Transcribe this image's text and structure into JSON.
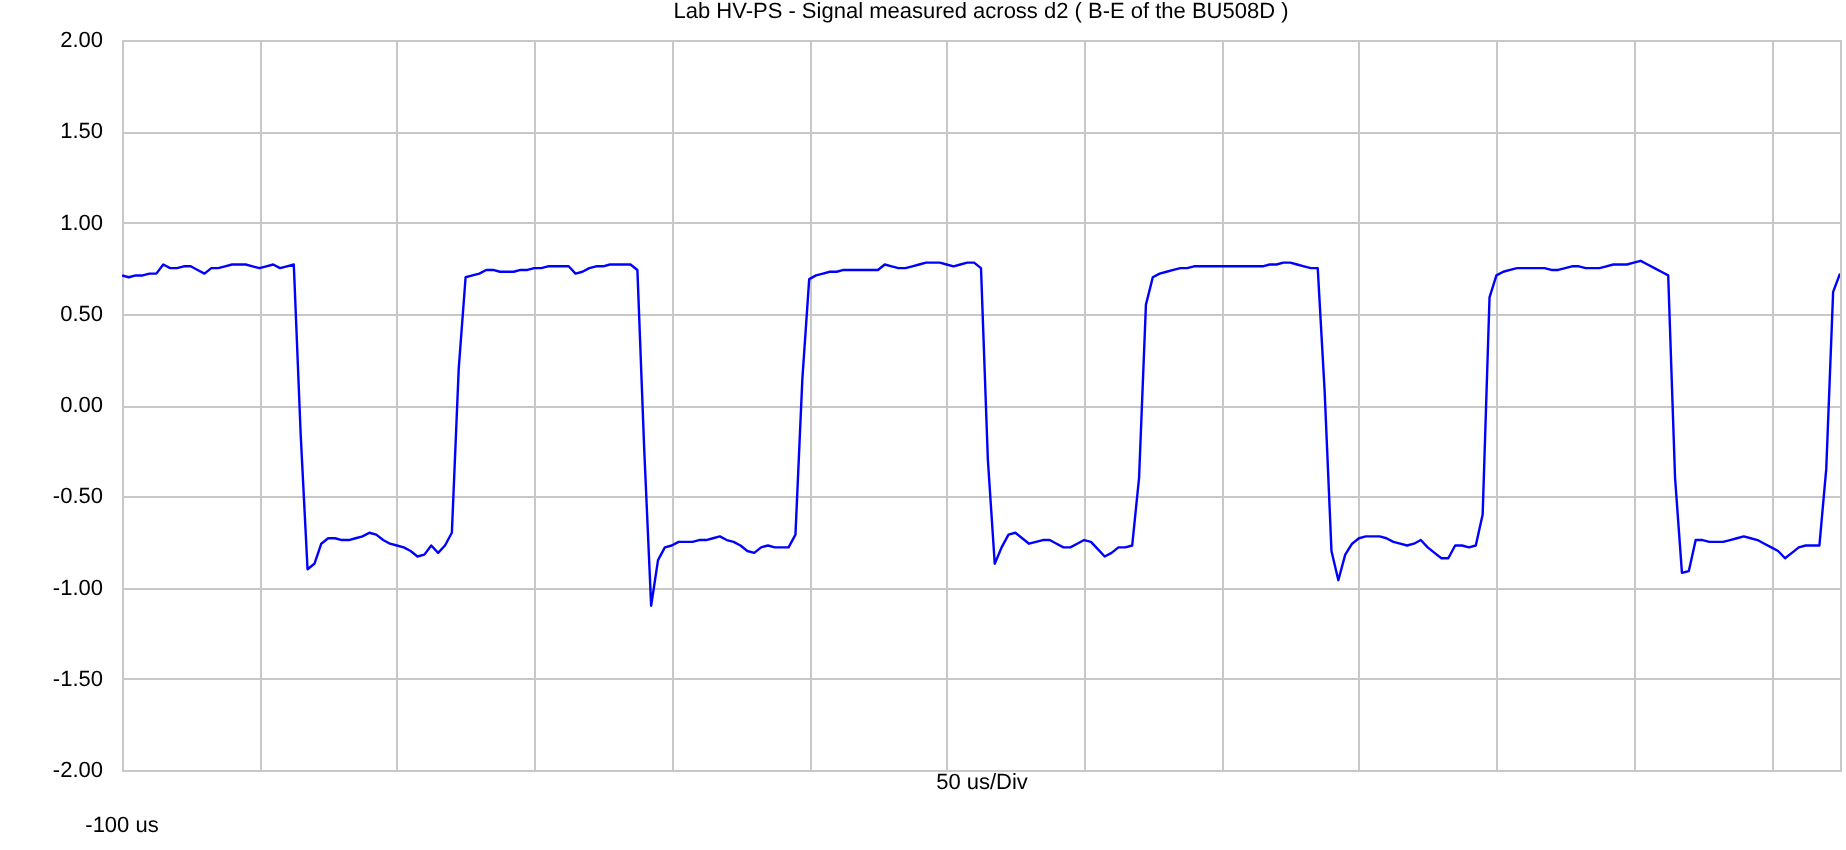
{
  "chart_data": {
    "type": "line",
    "title": "Lab HV-PS - Signal measured across d2 ( B-E of the BU508D )",
    "xlabel": "50 us/Div",
    "annotations": [
      "-100 us"
    ],
    "tick_labels": "y",
    "categories": [
      null,
      null,
      null,
      null,
      null,
      null,
      null,
      null,
      null,
      null,
      null,
      null,
      null,
      null,
      null,
      null,
      null,
      null,
      null,
      null,
      null,
      null,
      null,
      null,
      null,
      null,
      null,
      null,
      null,
      null,
      null,
      null,
      null,
      null,
      null,
      null,
      null,
      null,
      null,
      null,
      null,
      null,
      null,
      null,
      null,
      null,
      null,
      null,
      null,
      null,
      null,
      null,
      null,
      null,
      null,
      null,
      null,
      null,
      null,
      null,
      null,
      null,
      null,
      null,
      null,
      null,
      null,
      null,
      null,
      null,
      null,
      null,
      null,
      null,
      null,
      null,
      null,
      null,
      null,
      null,
      null,
      null,
      null,
      null,
      null,
      null,
      null,
      null,
      null,
      null,
      null,
      null,
      null,
      null,
      null,
      null,
      null,
      null,
      null,
      null,
      null,
      null,
      null,
      null,
      null,
      null,
      null,
      null,
      null,
      null,
      null,
      null,
      null,
      null,
      null,
      null,
      null,
      null,
      null,
      null,
      null,
      null,
      null,
      null,
      null,
      null,
      null,
      null,
      null,
      null,
      null,
      null,
      null,
      null,
      null,
      null,
      null,
      null,
      null,
      null,
      null,
      null,
      null,
      null,
      null,
      null,
      null,
      null,
      null,
      null,
      null,
      null,
      null,
      null,
      null,
      null,
      null,
      null,
      null,
      null,
      null,
      null,
      null,
      null,
      null,
      null,
      null,
      null,
      null,
      null,
      null,
      null,
      null,
      null,
      null,
      null,
      null,
      null,
      null,
      null,
      null,
      null,
      null,
      null,
      null,
      null,
      null,
      null,
      null,
      null,
      null,
      null,
      null,
      null,
      null,
      null,
      null,
      null,
      null,
      null,
      null,
      null,
      null,
      null,
      null,
      null,
      null,
      null,
      null,
      null,
      null,
      null,
      null,
      null,
      null,
      null,
      null,
      null,
      null,
      null,
      null,
      null,
      null,
      null,
      null,
      null,
      null,
      null,
      null,
      null,
      null,
      null,
      null,
      null,
      null,
      null,
      null,
      null,
      null,
      null,
      null,
      null,
      null,
      null,
      null,
      null,
      null,
      null,
      null,
      null,
      null
    ],
    "ylim": [
      -2,
      2
    ],
    "yticks": [
      {
        "value": -2,
        "label": "-2.00"
      },
      {
        "value": -1.5,
        "label": "-1.50"
      },
      {
        "value": -1,
        "label": "-1.00"
      },
      {
        "value": -0.5,
        "label": "-0.50"
      },
      {
        "value": 0,
        "label": "0.00"
      },
      {
        "value": 0.5,
        "label": "0.50"
      },
      {
        "value": 1,
        "label": "1.00"
      },
      {
        "value": 1.5,
        "label": "1.50"
      },
      {
        "value": 2,
        "label": "2.00"
      }
    ],
    "grid": true,
    "line_style": "solid",
    "series": [
      {
        "color": "#0000ff",
        "values": [
          0.71,
          0.7,
          0.71,
          0.71,
          0.72,
          0.72,
          0.77,
          0.75,
          0.75,
          0.76,
          0.76,
          0.74,
          0.72,
          0.75,
          0.75,
          0.76,
          0.77,
          0.77,
          0.77,
          0.76,
          0.75,
          0.76,
          0.77,
          0.75,
          0.76,
          0.77,
          -0.16,
          -0.9,
          -0.87,
          -0.76,
          -0.73,
          -0.73,
          -0.74,
          -0.74,
          -0.73,
          -0.72,
          -0.7,
          -0.71,
          -0.74,
          -0.76,
          -0.77,
          -0.78,
          -0.8,
          -0.83,
          -0.82,
          -0.77,
          -0.81,
          -0.77,
          -0.7,
          0.2,
          0.7,
          0.71,
          0.72,
          0.74,
          0.74,
          0.73,
          0.73,
          0.73,
          0.74,
          0.74,
          0.75,
          0.75,
          0.76,
          0.76,
          0.76,
          0.76,
          0.72,
          0.73,
          0.75,
          0.76,
          0.76,
          0.77,
          0.77,
          0.77,
          0.77,
          0.74,
          -0.25,
          -1.1,
          -0.85,
          -0.78,
          -0.77,
          -0.75,
          -0.75,
          -0.75,
          -0.74,
          -0.74,
          -0.73,
          -0.72,
          -0.74,
          -0.75,
          -0.77,
          -0.8,
          -0.81,
          -0.78,
          -0.77,
          -0.78,
          -0.78,
          -0.78,
          -0.71,
          0.14,
          0.69,
          0.71,
          0.72,
          0.73,
          0.73,
          0.74,
          0.74,
          0.74,
          0.74,
          0.74,
          0.74,
          0.77,
          0.76,
          0.75,
          0.75,
          0.76,
          0.77,
          0.78,
          0.78,
          0.78,
          0.77,
          0.76,
          0.77,
          0.78,
          0.78,
          0.75,
          -0.3,
          -0.87,
          -0.78,
          -0.71,
          -0.7,
          -0.73,
          -0.76,
          -0.75,
          -0.74,
          -0.74,
          -0.76,
          -0.78,
          -0.78,
          -0.76,
          -0.74,
          -0.75,
          -0.79,
          -0.83,
          -0.81,
          -0.78,
          -0.78,
          -0.77,
          -0.4,
          0.55,
          0.7,
          0.72,
          0.73,
          0.74,
          0.75,
          0.75,
          0.76,
          0.76,
          0.76,
          0.76,
          0.76,
          0.76,
          0.76,
          0.76,
          0.76,
          0.76,
          0.76,
          0.77,
          0.77,
          0.78,
          0.78,
          0.77,
          0.76,
          0.75,
          0.75,
          0.08,
          -0.8,
          -0.96,
          -0.82,
          -0.76,
          -0.73,
          -0.72,
          -0.72,
          -0.72,
          -0.73,
          -0.75,
          -0.76,
          -0.77,
          -0.76,
          -0.74,
          -0.78,
          -0.81,
          -0.84,
          -0.84,
          -0.77,
          -0.77,
          -0.78,
          -0.77,
          -0.6,
          0.59,
          0.71,
          0.73,
          0.74,
          0.75,
          0.75,
          0.75,
          0.75,
          0.75,
          0.74,
          0.74,
          0.75,
          0.76,
          0.76,
          0.75,
          0.75,
          0.75,
          0.76,
          0.77,
          0.77,
          0.77,
          0.78,
          0.79,
          0.77,
          0.75,
          0.73,
          0.71,
          -0.4,
          -0.92,
          -0.91,
          -0.74,
          -0.74,
          -0.75,
          -0.75,
          -0.75,
          -0.74,
          -0.73,
          -0.72,
          -0.73,
          -0.74,
          -0.76,
          -0.78,
          -0.8,
          -0.84,
          -0.81,
          -0.78,
          -0.77,
          -0.77,
          -0.77,
          -0.35,
          0.62,
          0.72
        ]
      }
    ]
  }
}
